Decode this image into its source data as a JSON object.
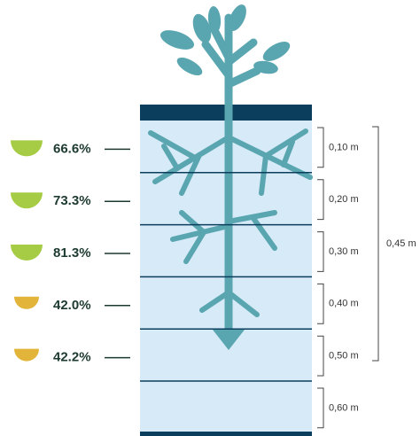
{
  "layers": [
    {
      "percent": "66.6%",
      "depth": "0,10 m",
      "color": "#a6cc45"
    },
    {
      "percent": "73.3%",
      "depth": "0,20 m",
      "color": "#a6cc45"
    },
    {
      "percent": "81.3%",
      "depth": "0,30 m",
      "color": "#a6cc45"
    },
    {
      "percent": "42.0%",
      "depth": "0,40 m",
      "color": "#e2b43a"
    },
    {
      "percent": "42.2%",
      "depth": "0,50 m",
      "color": "#e2b43a"
    },
    {
      "depth": "0,60 m"
    }
  ],
  "total_depth": "0,45 m"
}
